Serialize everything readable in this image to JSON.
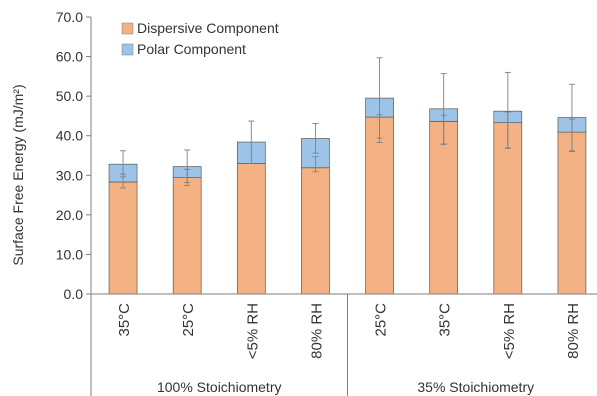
{
  "chart_data": {
    "type": "bar",
    "stacked": true,
    "ylabel": "Surface Free Energy (mJ/m²)",
    "ylim": [
      0,
      70
    ],
    "ytick_step": 10,
    "ytick_labels": [
      "0.0",
      "10.0",
      "20.0",
      "30.0",
      "40.0",
      "50.0",
      "60.0",
      "70.0"
    ],
    "categories": [
      "35°C",
      "25°C",
      "<5% RH",
      "80% RH",
      "25°C",
      "35°C",
      "<5% RH",
      "80% RH"
    ],
    "groups": [
      {
        "label": "100% Stoichiometry",
        "count": 4
      },
      {
        "label": "35% Stoichiometry",
        "count": 4
      }
    ],
    "series": [
      {
        "name": "Dispersive Component",
        "color": "#F4B183",
        "values": [
          28.3,
          29.4,
          33.0,
          31.9,
          44.7,
          43.6,
          43.3,
          40.9
        ]
      },
      {
        "name": "Polar Component",
        "color": "#9DC3E6",
        "values": [
          4.5,
          2.8,
          5.4,
          7.4,
          4.8,
          3.2,
          2.9,
          3.7
        ]
      }
    ],
    "error_bars": {
      "on_total": [
        [
          29.6,
          36.2
        ],
        [
          28.2,
          36.4
        ],
        [
          33.0,
          43.7
        ],
        [
          35.6,
          43.1
        ],
        [
          39.4,
          59.7
        ],
        [
          37.8,
          55.7
        ],
        [
          36.9,
          56.0
        ],
        [
          36.2,
          53.0
        ]
      ],
      "on_dispersive": [
        [
          26.8,
          30.3
        ],
        [
          27.4,
          31.5
        ],
        null,
        [
          30.9,
          34.7
        ],
        [
          38.3,
          45.3
        ],
        [
          37.9,
          45.2
        ],
        [
          36.8,
          46.0
        ],
        [
          36.0,
          44.2
        ]
      ]
    },
    "legend_position": "top-left",
    "grid": false
  }
}
